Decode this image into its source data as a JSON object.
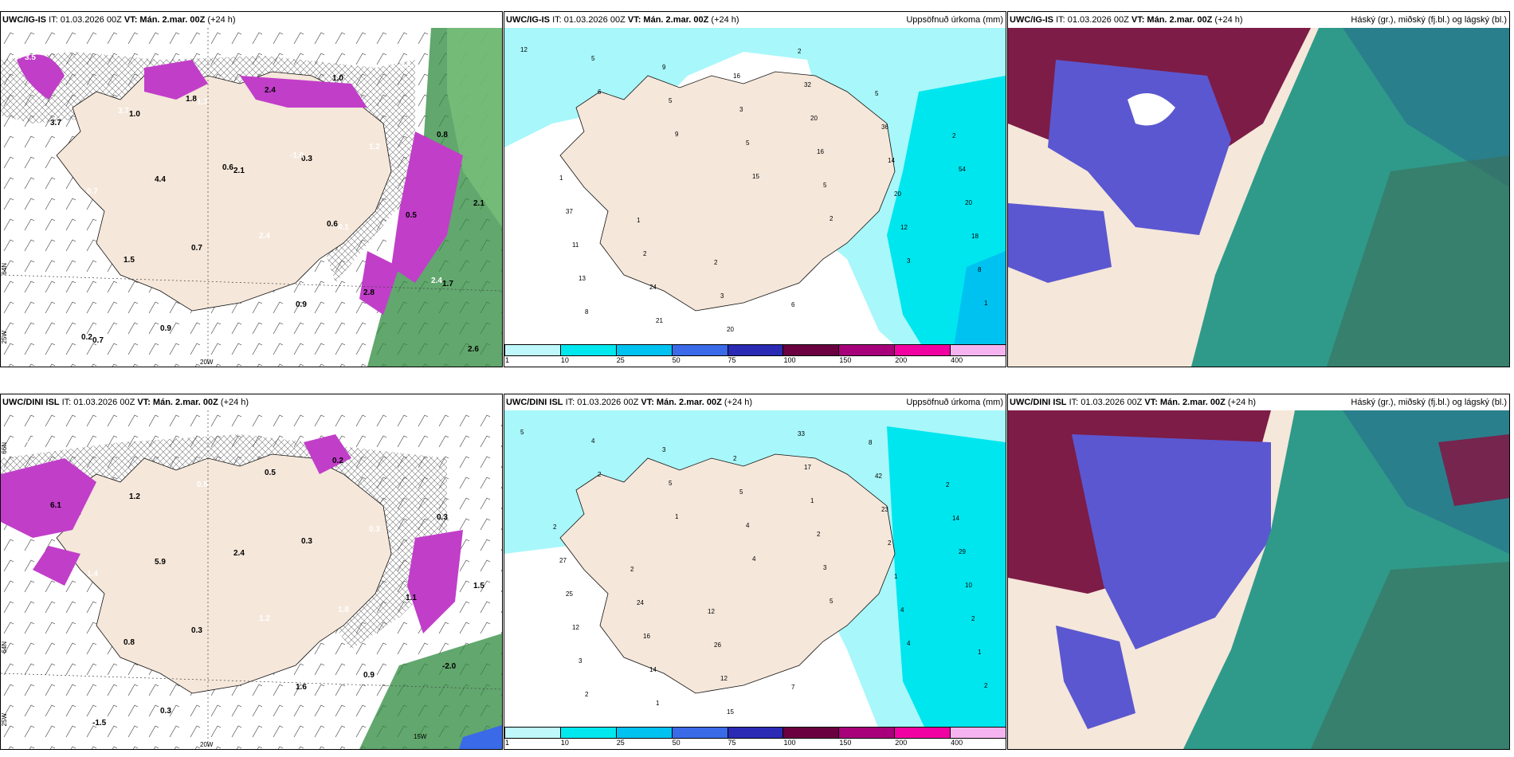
{
  "row1": {
    "p1": {
      "model": "UWC/IG-IS",
      "it": "IT: 01.03.2026 00Z",
      "vt_label": "VT:",
      "vt_value": "Mán. 2.mar. 00Z",
      "lead": "(+24 h)",
      "lon_label": "20W",
      "lat_label1": "64N",
      "lat_label2": "25W",
      "values": [
        "3.5",
        "1.0",
        "2.1",
        "4.1",
        "1.7",
        "0.7",
        "1.7",
        "0.3",
        "0.5",
        "0.8",
        "0.9",
        "2.4",
        "1.2",
        "2.1",
        "1.5",
        "0.5",
        "1.0",
        "0.8",
        "0.7",
        "0.7",
        "0.9",
        "2.5",
        "3.7",
        "4.4",
        "2.4",
        "2.8",
        "2.6",
        "3.7",
        "0.6",
        "0.6",
        "2.4",
        "0.2",
        "1.8",
        "-1.0"
      ]
    },
    "p2": {
      "model": "UWC/IG-IS",
      "it": "IT: 01.03.2026 00Z",
      "vt_label": "VT:",
      "vt_value": "Mán. 2.mar. 00Z",
      "lead": "(+24 h)",
      "title": "Uppsöfnuð úrkoma (mm)",
      "values": [
        "12",
        "6",
        "9",
        "15",
        "2",
        "3",
        "1",
        "5",
        "5",
        "5",
        "5",
        "12",
        "8",
        "8",
        "9",
        "3",
        "16",
        "20",
        "18",
        "13",
        "21",
        "16",
        "20",
        "14",
        "20",
        "11",
        "24",
        "20",
        "32",
        "36",
        "54",
        "37",
        "2",
        "3",
        "2",
        "5",
        "2",
        "1",
        "1",
        "2",
        "6"
      ]
    },
    "p3": {
      "model": "UWC/IG-IS",
      "it": "IT: 01.03.2026 00Z",
      "vt_label": "VT:",
      "vt_value": "Mán. 2.mar. 00Z",
      "lead": "(+24 h)",
      "title": "Háský (gr.), miðský (fj.bl.) og lágský (bl.)"
    }
  },
  "row2": {
    "p1": {
      "model": "UWC/DINI ISL",
      "it": "IT: 01.03.2026 00Z",
      "vt_label": "VT:",
      "vt_value": "Mán. 2.mar. 00Z",
      "lead": "(+24 h)",
      "lon_label": "20W",
      "lon_label2": "15W",
      "lat_label1": "66N",
      "lat_label2": "64N",
      "lat_label3": "25W",
      "values": [
        "2.9",
        "1.2",
        "2.4",
        "1.8",
        "-2.0",
        "-1.5",
        "0.5",
        "0.3",
        "1.1",
        "0.6",
        "0.3",
        "0.5",
        "0.3",
        "1.5",
        "0.8",
        "-1.0",
        "0.2",
        "0.3",
        "1.4",
        "0.3",
        "1.6",
        "2.4",
        "6.1",
        "5.9",
        "1.2",
        "0.9"
      ]
    },
    "p2": {
      "model": "UWC/DINI ISL",
      "it": "IT: 01.03.2026 00Z",
      "vt_label": "VT:",
      "vt_value": "Mán. 2.mar. 00Z",
      "lead": "(+24 h)",
      "title": "Uppsöfnuð úrkoma (mm)",
      "values": [
        "5",
        "2",
        "1",
        "4",
        "5",
        "4",
        "2",
        "4",
        "5",
        "4",
        "3",
        "4",
        "1",
        "2",
        "3",
        "5",
        "2",
        "1",
        "2",
        "3",
        "1",
        "2",
        "1",
        "2",
        "10",
        "12",
        "14",
        "15",
        "17",
        "23",
        "29",
        "25",
        "16",
        "12",
        "33",
        "42",
        "14",
        "27",
        "24",
        "26",
        "7",
        "8",
        "2",
        "2",
        "2",
        "12"
      ]
    },
    "p3": {
      "model": "UWC/DINI ISL",
      "it": "IT: 01.03.2026 00Z",
      "vt_label": "VT:",
      "vt_value": "Mán. 2.mar. 00Z",
      "lead": "(+24 h)",
      "title": "Háský (gr.), miðský (fj.bl.) og lágský (bl.)"
    }
  },
  "colorbar": {
    "ticks": [
      "1",
      "10",
      "25",
      "50",
      "75",
      "100",
      "150",
      "200",
      "400"
    ],
    "colors": [
      "#bff8fb",
      "#00e8ee",
      "#00c2f0",
      "#3a6ae8",
      "#2a2ab4",
      "#6a0040",
      "#a8007a",
      "#f000a0",
      "#f5b4f0"
    ]
  },
  "colors": {
    "land": "#f5e7da",
    "ocean_light": "#a8f7fa",
    "ocean_mid": "#00e6ef",
    "cloud_high": "#7d1c47",
    "cloud_mid": "#5b57d0",
    "cloud_low": "#2f9a8a"
  }
}
